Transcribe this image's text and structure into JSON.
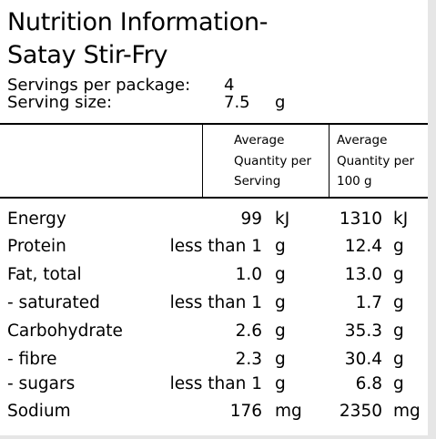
{
  "title_line1": "Nutrition Information-",
  "title_line2": "Satay Stir-Fry",
  "servings_label": "Servings per package:",
  "servings_value": "4",
  "size_label": "Serving size:",
  "size_value": "7.5",
  "size_unit": "g",
  "col_serving": "Average\nQuantity per\nServing",
  "col_100g": "Average\nQuantity per\n100 g",
  "rows": [
    {
      "label": "Energy",
      "serving": "99",
      "serving_unit": "kJ",
      "per100": "1310",
      "per100_unit": "kJ"
    },
    {
      "label": "Protein",
      "serving": "less than 1",
      "serving_unit": "g",
      "per100": "12.4",
      "per100_unit": "g"
    },
    {
      "label": "Fat, total",
      "serving": "1.0",
      "serving_unit": "g",
      "per100": "13.0",
      "per100_unit": "g"
    },
    {
      "label": "- saturated",
      "serving": "less than 1",
      "serving_unit": "g",
      "per100": "1.7",
      "per100_unit": "g"
    },
    {
      "label": "Carbohydrate",
      "serving": "2.6",
      "serving_unit": "g",
      "per100": "35.3",
      "per100_unit": "g"
    },
    {
      "label": "- fibre",
      "serving": "2.3",
      "serving_unit": "g",
      "per100": "30.4",
      "per100_unit": "g"
    },
    {
      "label": "- sugars",
      "serving": "less than 1",
      "serving_unit": "g",
      "per100": "6.8",
      "per100_unit": "g"
    },
    {
      "label": "Sodium",
      "serving": "176",
      "serving_unit": "mg",
      "per100": "2350",
      "per100_unit": "mg"
    }
  ]
}
